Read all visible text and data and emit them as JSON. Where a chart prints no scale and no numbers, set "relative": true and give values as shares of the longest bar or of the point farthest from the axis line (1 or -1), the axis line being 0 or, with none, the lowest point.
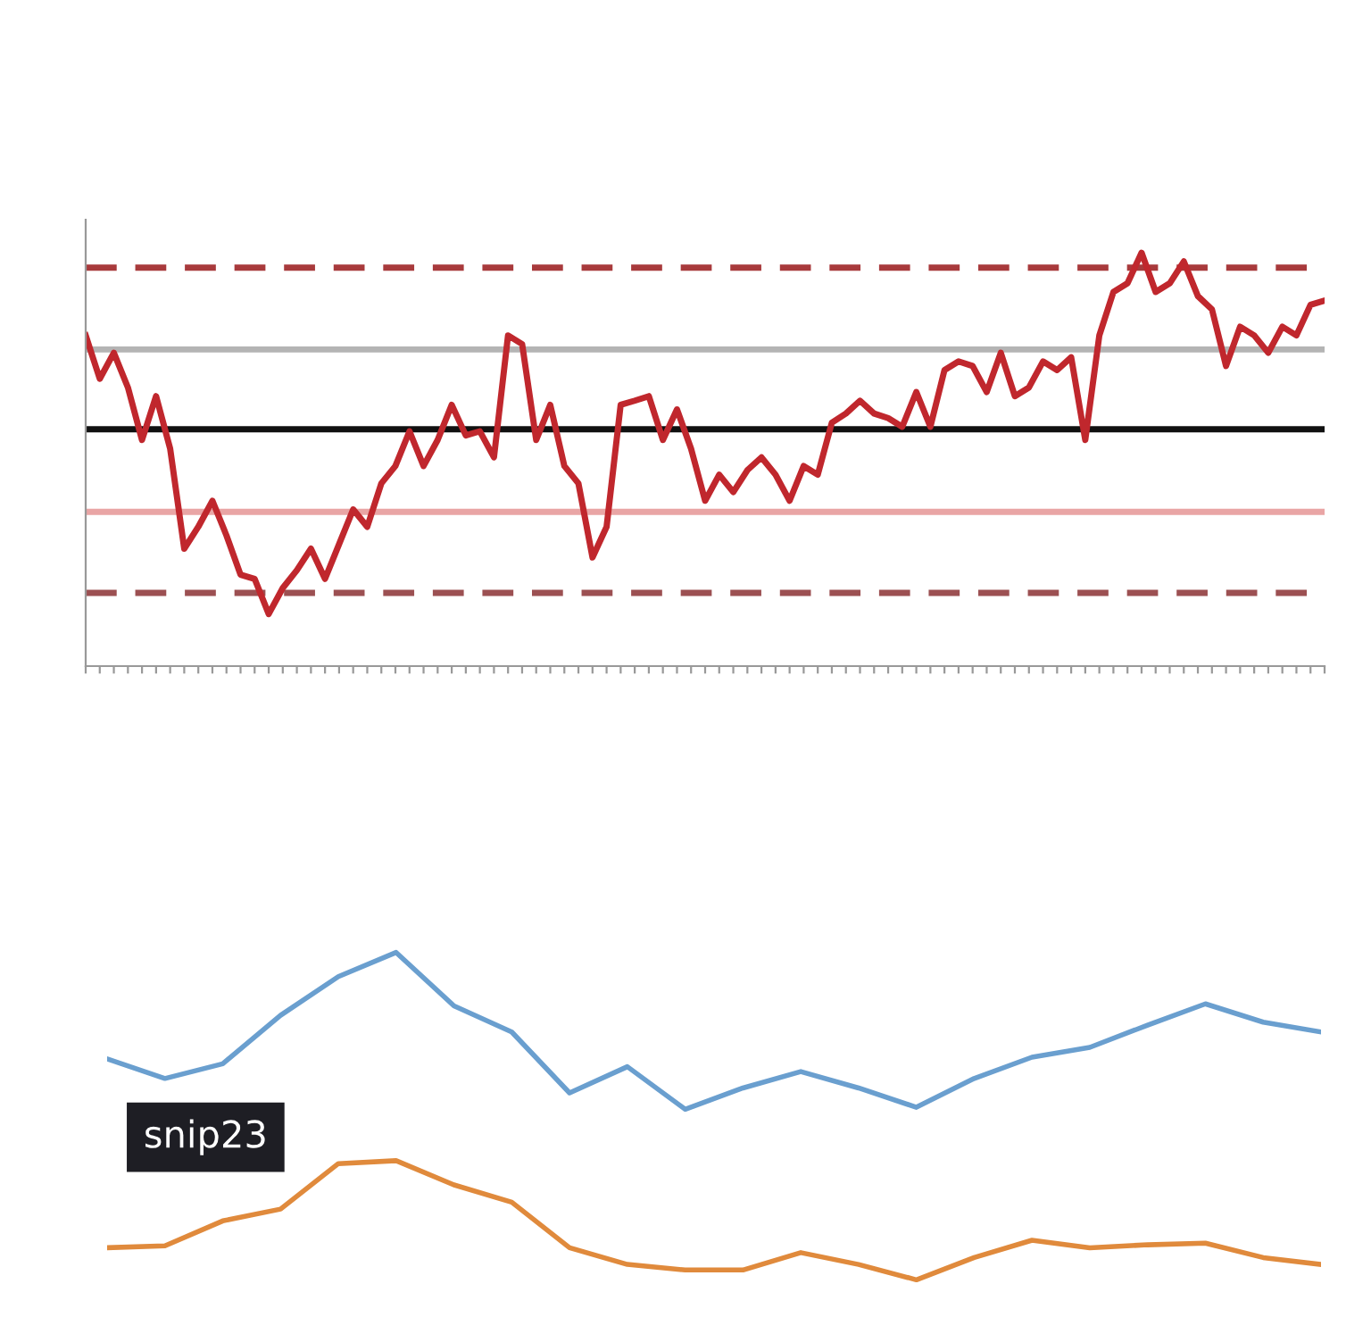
{
  "chart_data": [
    {
      "type": "line",
      "relative": true,
      "categories": [
        null,
        null,
        null,
        null,
        null,
        null,
        null,
        null,
        null,
        null,
        null,
        null,
        null,
        null,
        null,
        null,
        null,
        null,
        null,
        null,
        null,
        null,
        null,
        null,
        null,
        null,
        null,
        null,
        null,
        null,
        null,
        null,
        null,
        null,
        null,
        null,
        null,
        null,
        null,
        null,
        null,
        null,
        null,
        null,
        null,
        null,
        null,
        null,
        null,
        null,
        null,
        null,
        null,
        null,
        null,
        null,
        null,
        null,
        null,
        null,
        null,
        null,
        null,
        null,
        null,
        null,
        null,
        null,
        null,
        null,
        null,
        null,
        null,
        null,
        null,
        null,
        null,
        null,
        null,
        null,
        null,
        null,
        null,
        null,
        null,
        null,
        null,
        null,
        null
      ],
      "series": [
        {
          "color": "#c0272d",
          "values": [
            0.8,
            0.695,
            0.758,
            0.674,
            0.547,
            0.653,
            0.526,
            0.284,
            0.337,
            0.4,
            0.316,
            0.221,
            0.211,
            0.126,
            0.189,
            0.232,
            0.284,
            0.211,
            0.295,
            0.379,
            0.337,
            0.442,
            0.484,
            0.568,
            0.484,
            0.547,
            0.632,
            0.558,
            0.568,
            0.505,
            0.8,
            0.779,
            0.547,
            0.632,
            0.484,
            0.442,
            0.263,
            0.337,
            0.632,
            0.642,
            0.653,
            0.547,
            0.621,
            0.526,
            0.4,
            0.463,
            0.421,
            0.474,
            0.505,
            0.463,
            0.4,
            0.484,
            0.463,
            0.589,
            0.611,
            0.642,
            0.611,
            0.6,
            0.579,
            0.663,
            0.579,
            0.716,
            0.737,
            0.726,
            0.663,
            0.758,
            0.653,
            0.674,
            0.737,
            0.716,
            0.747,
            0.547,
            0.8,
            0.905,
            0.926,
            1.0,
            0.905,
            0.926,
            0.979,
            0.895,
            0.863,
            0.726,
            0.821,
            0.8,
            0.758,
            0.821,
            0.8,
            0.874,
            0.884
          ]
        }
      ],
      "ref_lines": [
        {
          "axis": "y",
          "value": 0.964,
          "color": "#a83a3c",
          "line_style": "dashed"
        },
        {
          "axis": "y",
          "value": 0.766,
          "color": "#b4b4b4",
          "line_style": "solid"
        },
        {
          "axis": "y",
          "value": 0.573,
          "color": "#111111",
          "line_style": "solid"
        },
        {
          "axis": "y",
          "value": 0.373,
          "color": "#e9a5a5",
          "line_style": "solid"
        },
        {
          "axis": "y",
          "value": 0.177,
          "color": "#9c5052",
          "line_style": "dashed"
        }
      ]
    },
    {
      "type": "line",
      "relative": true,
      "categories": [
        null,
        null,
        null,
        null,
        null,
        null,
        null,
        null,
        null,
        null,
        null,
        null,
        null,
        null,
        null,
        null,
        null,
        null,
        null,
        null,
        null,
        null
      ],
      "series": [
        {
          "color": "#6a9fcf",
          "values": [
            0.675,
            0.615,
            0.66,
            0.808,
            0.926,
            1.0,
            0.837,
            0.757,
            0.571,
            0.651,
            0.521,
            0.586,
            0.636,
            0.586,
            0.527,
            0.615,
            0.68,
            0.71,
            0.778,
            0.843,
            0.787,
            0.757
          ]
        },
        {
          "color": "#e08a3c",
          "values": [
            0.098,
            0.104,
            0.18,
            0.216,
            0.355,
            0.364,
            0.29,
            0.237,
            0.098,
            0.047,
            0.03,
            0.03,
            0.083,
            0.047,
            0.0,
            0.068,
            0.121,
            0.098,
            0.107,
            0.112,
            0.068,
            0.047
          ]
        }
      ],
      "annotations": [
        "snip23"
      ]
    }
  ]
}
